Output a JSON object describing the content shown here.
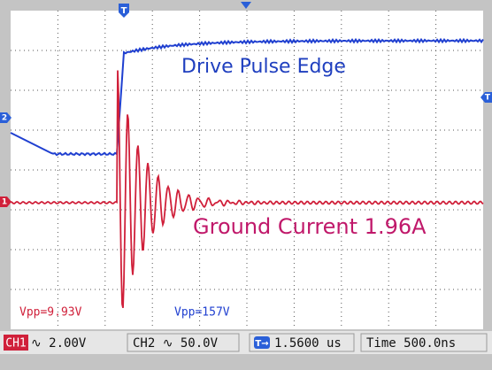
{
  "markers": {
    "trigger_top": "T",
    "ch2": "2",
    "ch1": "1",
    "trigger_right": "T"
  },
  "annotations": {
    "drive": "Drive Pulse Edge",
    "ground": "Ground Current 1.96A"
  },
  "measurements": {
    "ch1_vpp": "Vpp=9.93V",
    "ch2_vpp": "Vpp=157V"
  },
  "status_bar": {
    "ch1_label": "CH1",
    "ch1_scale": "∿ 2.00V",
    "ch2": "CH2 ∿ 50.0V",
    "trigger_position": "1.5600 us",
    "timebase": "Time 500.0ns"
  }
}
